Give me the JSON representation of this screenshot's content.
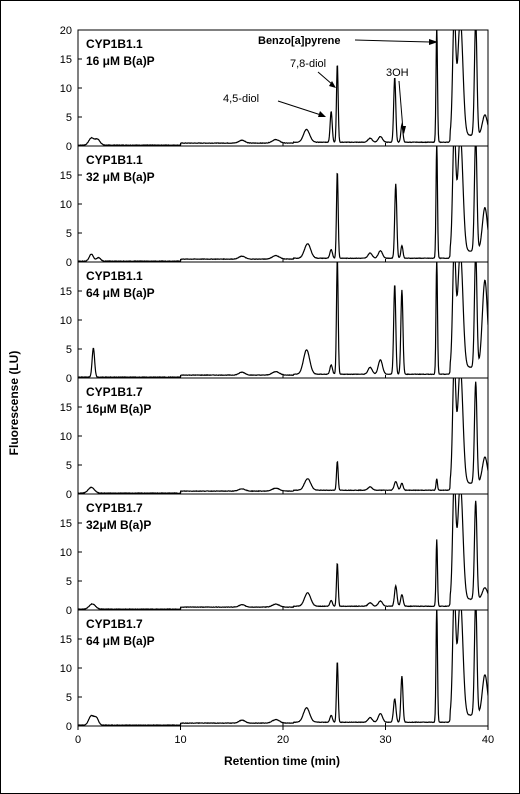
{
  "chart_data": {
    "type": "line",
    "xlabel": "Retention time (min)",
    "ylabel": "Fluorescense (LU)",
    "xlim": [
      0,
      40
    ],
    "ylim": [
      0,
      20
    ],
    "x_ticks": [
      "0",
      "10",
      "20",
      "30",
      "40"
    ],
    "y_ticks_top": [
      "0",
      "5",
      "10",
      "15",
      "20"
    ],
    "y_ticks": [
      "0",
      "5",
      "10",
      "15"
    ],
    "grid": false,
    "panels": [
      {
        "label_line1": "CYP1B1.1",
        "label_line2": "16 μM B(a)P",
        "peaks": [
          {
            "x": 1.3,
            "y": 1.2,
            "w": 0.25
          },
          {
            "x": 1.9,
            "y": 1.0,
            "w": 0.25
          },
          {
            "x": 16.0,
            "y": 0.5,
            "w": 0.3
          },
          {
            "x": 19.3,
            "y": 0.6,
            "w": 0.35
          },
          {
            "x": 22.3,
            "y": 2.2,
            "w": 0.3
          },
          {
            "x": 24.7,
            "y": 5.3,
            "w": 0.1
          },
          {
            "x": 25.3,
            "y": 13.5,
            "w": 0.08
          },
          {
            "x": 28.5,
            "y": 0.7,
            "w": 0.2
          },
          {
            "x": 29.5,
            "y": 1.0,
            "w": 0.2
          },
          {
            "x": 30.9,
            "y": 11.2,
            "w": 0.1
          },
          {
            "x": 31.6,
            "y": 3.0,
            "w": 0.1
          },
          {
            "x": 35.0,
            "y": 20.0,
            "w": 0.07
          },
          {
            "x": 36.7,
            "y": 20.0,
            "w": 0.15
          },
          {
            "x": 37.3,
            "y": 20.0,
            "w": 0.25
          },
          {
            "x": 38.8,
            "y": 20.0,
            "w": 0.12
          },
          {
            "x": 39.7,
            "y": 3.5,
            "w": 0.25
          }
        ],
        "annotations": [
          "Benzo[a]pyrene",
          "7,8-diol",
          "4,5-diol",
          "3OH"
        ]
      },
      {
        "label_line1": "CYP1B1.1",
        "label_line2": "32  μM B(a)P",
        "peaks": [
          {
            "x": 1.3,
            "y": 1.2,
            "w": 0.2
          },
          {
            "x": 2.0,
            "y": 0.6,
            "w": 0.2
          },
          {
            "x": 16.0,
            "y": 0.5,
            "w": 0.3
          },
          {
            "x": 19.3,
            "y": 0.6,
            "w": 0.35
          },
          {
            "x": 22.4,
            "y": 2.5,
            "w": 0.3
          },
          {
            "x": 24.7,
            "y": 1.5,
            "w": 0.12
          },
          {
            "x": 25.3,
            "y": 15.0,
            "w": 0.08
          },
          {
            "x": 28.5,
            "y": 0.9,
            "w": 0.2
          },
          {
            "x": 29.5,
            "y": 1.3,
            "w": 0.2
          },
          {
            "x": 31.0,
            "y": 12.8,
            "w": 0.1
          },
          {
            "x": 31.6,
            "y": 2.2,
            "w": 0.1
          },
          {
            "x": 35.0,
            "y": 20.0,
            "w": 0.07
          },
          {
            "x": 36.7,
            "y": 20.0,
            "w": 0.15
          },
          {
            "x": 37.3,
            "y": 20.0,
            "w": 0.25
          },
          {
            "x": 38.8,
            "y": 20.0,
            "w": 0.12
          },
          {
            "x": 39.7,
            "y": 7.5,
            "w": 0.25
          }
        ],
        "annotations": []
      },
      {
        "label_line1": "CYP1B1.1",
        "label_line2": "64 μM B(a)P",
        "peaks": [
          {
            "x": 1.5,
            "y": 5.0,
            "w": 0.12
          },
          {
            "x": 16.0,
            "y": 0.5,
            "w": 0.3
          },
          {
            "x": 19.3,
            "y": 0.6,
            "w": 0.35
          },
          {
            "x": 22.3,
            "y": 4.2,
            "w": 0.3
          },
          {
            "x": 24.7,
            "y": 1.6,
            "w": 0.12
          },
          {
            "x": 25.3,
            "y": 20.0,
            "w": 0.08
          },
          {
            "x": 28.5,
            "y": 1.2,
            "w": 0.2
          },
          {
            "x": 29.5,
            "y": 2.5,
            "w": 0.2
          },
          {
            "x": 30.9,
            "y": 15.5,
            "w": 0.1
          },
          {
            "x": 31.6,
            "y": 14.5,
            "w": 0.1
          },
          {
            "x": 35.0,
            "y": 20.0,
            "w": 0.07
          },
          {
            "x": 36.7,
            "y": 20.0,
            "w": 0.15
          },
          {
            "x": 37.3,
            "y": 20.0,
            "w": 0.25
          },
          {
            "x": 38.8,
            "y": 20.0,
            "w": 0.12
          },
          {
            "x": 39.7,
            "y": 15.0,
            "w": 0.25
          }
        ],
        "annotations": []
      },
      {
        "label_line1": "CYP1B1.7",
        "label_line2": "16μM B(a)P",
        "peaks": [
          {
            "x": 1.3,
            "y": 1.0,
            "w": 0.3
          },
          {
            "x": 16.0,
            "y": 0.4,
            "w": 0.3
          },
          {
            "x": 19.3,
            "y": 0.5,
            "w": 0.35
          },
          {
            "x": 22.4,
            "y": 2.0,
            "w": 0.3
          },
          {
            "x": 25.3,
            "y": 5.0,
            "w": 0.08
          },
          {
            "x": 28.5,
            "y": 0.6,
            "w": 0.2
          },
          {
            "x": 31.0,
            "y": 1.5,
            "w": 0.15
          },
          {
            "x": 31.6,
            "y": 1.2,
            "w": 0.12
          },
          {
            "x": 35.0,
            "y": 2.0,
            "w": 0.07
          },
          {
            "x": 36.7,
            "y": 20.0,
            "w": 0.15
          },
          {
            "x": 37.3,
            "y": 20.0,
            "w": 0.25
          },
          {
            "x": 38.8,
            "y": 17.5,
            "w": 0.12
          },
          {
            "x": 39.7,
            "y": 4.5,
            "w": 0.25
          }
        ],
        "annotations": []
      },
      {
        "label_line1": "CYP1B1.7",
        "label_line2": "32μM B(a)P",
        "peaks": [
          {
            "x": 1.4,
            "y": 0.9,
            "w": 0.3
          },
          {
            "x": 16.0,
            "y": 0.4,
            "w": 0.3
          },
          {
            "x": 19.3,
            "y": 0.5,
            "w": 0.35
          },
          {
            "x": 22.4,
            "y": 2.3,
            "w": 0.3
          },
          {
            "x": 24.7,
            "y": 1.0,
            "w": 0.12
          },
          {
            "x": 25.3,
            "y": 7.5,
            "w": 0.08
          },
          {
            "x": 28.5,
            "y": 0.6,
            "w": 0.2
          },
          {
            "x": 29.5,
            "y": 0.9,
            "w": 0.2
          },
          {
            "x": 31.0,
            "y": 3.5,
            "w": 0.12
          },
          {
            "x": 31.6,
            "y": 2.0,
            "w": 0.12
          },
          {
            "x": 35.0,
            "y": 11.5,
            "w": 0.07
          },
          {
            "x": 36.7,
            "y": 20.0,
            "w": 0.15
          },
          {
            "x": 37.3,
            "y": 20.0,
            "w": 0.25
          },
          {
            "x": 38.8,
            "y": 17.0,
            "w": 0.12
          },
          {
            "x": 39.7,
            "y": 2.0,
            "w": 0.25
          }
        ],
        "annotations": []
      },
      {
        "label_line1": "CYP1B1.7",
        "label_line2": "64 μM B(a)P",
        "peaks": [
          {
            "x": 1.3,
            "y": 1.6,
            "w": 0.25
          },
          {
            "x": 1.8,
            "y": 1.2,
            "w": 0.2
          },
          {
            "x": 16.0,
            "y": 0.5,
            "w": 0.3
          },
          {
            "x": 19.3,
            "y": 0.6,
            "w": 0.35
          },
          {
            "x": 22.3,
            "y": 2.5,
            "w": 0.3
          },
          {
            "x": 24.7,
            "y": 1.2,
            "w": 0.12
          },
          {
            "x": 25.3,
            "y": 10.5,
            "w": 0.08
          },
          {
            "x": 28.5,
            "y": 0.8,
            "w": 0.2
          },
          {
            "x": 29.5,
            "y": 1.5,
            "w": 0.2
          },
          {
            "x": 30.9,
            "y": 4.0,
            "w": 0.12
          },
          {
            "x": 31.6,
            "y": 8.0,
            "w": 0.1
          },
          {
            "x": 35.0,
            "y": 20.0,
            "w": 0.07
          },
          {
            "x": 36.7,
            "y": 20.0,
            "w": 0.15
          },
          {
            "x": 37.3,
            "y": 20.0,
            "w": 0.25
          },
          {
            "x": 38.8,
            "y": 20.0,
            "w": 0.12
          },
          {
            "x": 39.7,
            "y": 7.0,
            "w": 0.25
          }
        ],
        "annotations": []
      }
    ]
  }
}
